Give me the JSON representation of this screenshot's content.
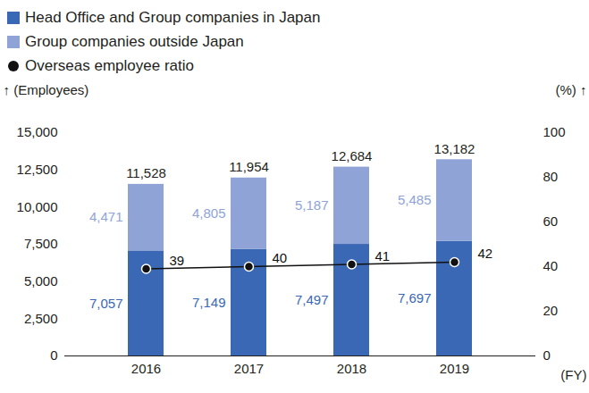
{
  "chart_data": {
    "type": "bar",
    "stacked": true,
    "data_labels": true,
    "grid": false,
    "legend": "top-left",
    "categories": [
      "2016",
      "2017",
      "2018",
      "2019"
    ],
    "x_label": "(FY)",
    "y_label": "(Employees)",
    "y2_label": "(%)",
    "ylim": [
      0,
      15000
    ],
    "yticks": [
      0,
      {
        "value": 2500,
        "label": "2,500"
      },
      {
        "value": 5000,
        "label": "5,000"
      },
      {
        "value": 7500,
        "label": "7,500"
      },
      {
        "value": 10000,
        "label": "10,000"
      },
      {
        "value": 12500,
        "label": "12,500"
      },
      {
        "value": 15000,
        "label": "15,000"
      }
    ],
    "y2lim": [
      0,
      100
    ],
    "y2ticks": [
      0,
      20,
      40,
      60,
      80,
      100
    ],
    "series": [
      {
        "name": "Head Office and Group companies in Japan",
        "color": "#3a68b4",
        "values": [
          7057,
          7149,
          7497,
          7697
        ],
        "value_labels": [
          "7,057",
          "7,149",
          "7,497",
          "7,697"
        ]
      },
      {
        "name": "Group companies outside Japan",
        "color": "#8fa3d7",
        "values": [
          4471,
          4805,
          5187,
          5485
        ],
        "value_labels": [
          "4,471",
          "4,805",
          "5,187",
          "5,485"
        ]
      },
      {
        "name": "Overseas employee ratio",
        "type": "line",
        "axis": "y2",
        "color": "#111111",
        "marker": "circle",
        "values": [
          39,
          40,
          41,
          42
        ]
      }
    ],
    "totals": [
      11528,
      11954,
      12684,
      13182
    ],
    "total_labels": [
      "11,528",
      "11,954",
      "12,684",
      "13,182"
    ]
  }
}
